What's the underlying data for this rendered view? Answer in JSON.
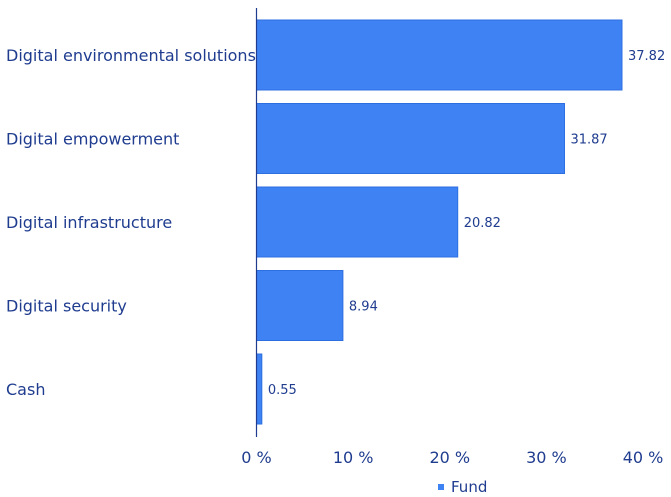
{
  "chart_data": {
    "type": "bar",
    "orientation": "horizontal",
    "categories": [
      "Digital environmental solutions",
      "Digital empowerment",
      "Digital infrastructure",
      "Digital security",
      "Cash"
    ],
    "series": [
      {
        "name": "Fund",
        "values": [
          37.82,
          31.87,
          20.82,
          8.94,
          0.55
        ]
      }
    ],
    "value_labels": [
      "37.82",
      "31.87",
      "20.82",
      "8.94",
      "0.55"
    ],
    "xticks": [
      "0 %",
      "10 %",
      "20 %",
      "30 %",
      "40 %"
    ],
    "xtick_values": [
      0,
      10,
      20,
      30,
      40
    ],
    "xlim": [
      0,
      40
    ],
    "grid": false,
    "legend": {
      "position": "bottom-center",
      "entries": [
        "Fund"
      ]
    },
    "colors": {
      "bar": "#3f82f4",
      "bar_edge": "#2d6fe0",
      "text": "#1f3c8f",
      "axis": "#1f3c8f"
    }
  }
}
